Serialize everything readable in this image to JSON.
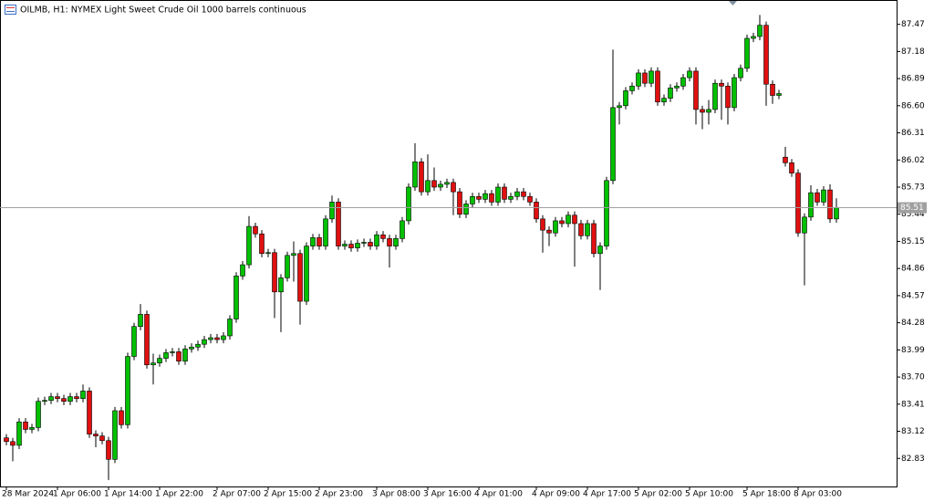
{
  "chart_data": {
    "type": "candlestick",
    "title": "OILMB, H1:  NYMEX Light Sweet Crude Oil 1000 barrels continuous",
    "up_color": "#00c000",
    "down_color": "#e01010",
    "ylim": [
      82.53,
      87.73
    ],
    "yticks": [
      87.47,
      87.18,
      86.89,
      {
        "value": 86.6,
        "label": "86.60"
      },
      86.31,
      86.02,
      85.73,
      85.44,
      85.15,
      84.86,
      84.57,
      84.28,
      83.99,
      {
        "value": 83.7,
        "label": "83.70"
      },
      83.41,
      83.12,
      82.83
    ],
    "current_price": 85.51,
    "categories": [
      "28 Mar 2024",
      null,
      null,
      null,
      null,
      null,
      null,
      null,
      "1 Apr 06:00",
      null,
      null,
      null,
      null,
      null,
      null,
      null,
      "1 Apr 14:00",
      null,
      null,
      null,
      null,
      null,
      null,
      null,
      "1 Apr 22:00",
      null,
      null,
      null,
      null,
      null,
      null,
      null,
      null,
      "2 Apr 07:00",
      null,
      null,
      null,
      null,
      null,
      null,
      null,
      "2 Apr 15:00",
      null,
      null,
      null,
      null,
      null,
      null,
      null,
      "2 Apr 23:00",
      null,
      null,
      null,
      null,
      null,
      null,
      null,
      null,
      "3 Apr 08:00",
      null,
      null,
      null,
      null,
      null,
      null,
      null,
      "3 Apr 16:00",
      null,
      null,
      null,
      null,
      null,
      null,
      null,
      "4 Apr 01:00",
      null,
      null,
      null,
      null,
      null,
      null,
      null,
      null,
      "4 Apr 09:00",
      null,
      null,
      null,
      null,
      null,
      null,
      null,
      "4 Apr 17:00",
      null,
      null,
      null,
      null,
      null,
      null,
      null,
      "5 Apr 02:00",
      null,
      null,
      null,
      null,
      null,
      null,
      null,
      "5 Apr 10:00",
      null,
      null,
      null,
      null,
      null,
      null,
      null,
      null,
      "5 Apr 18:00",
      null,
      null,
      null,
      null,
      null,
      null,
      null,
      "8 Apr 03:00",
      null,
      null,
      null,
      null,
      null,
      null
    ],
    "open": [
      83.05,
      83.01,
      82.97,
      83.22,
      83.14,
      83.16,
      83.44,
      83.45,
      83.49,
      83.47,
      83.44,
      83.49,
      83.47,
      83.55,
      83.09,
      83.07,
      83.02,
      82.82,
      83.34,
      83.19,
      83.92,
      84.24,
      84.37,
      83.83,
      83.85,
      83.9,
      83.96,
      83.97,
      83.87,
      84.0,
      84.02,
      84.05,
      84.1,
      84.12,
      84.1,
      84.14,
      84.32,
      84.78,
      84.9,
      85.31,
      85.23,
      85.02,
      85.03,
      84.61,
      84.76,
      85.0,
      85.02,
      84.51,
      85.1,
      85.19,
      85.1,
      85.39,
      85.57,
      85.1,
      85.12,
      85.08,
      85.13,
      85.14,
      85.1,
      85.22,
      85.18,
      85.1,
      85.18,
      85.37,
      85.73,
      86.0,
      85.68,
      85.8,
      85.73,
      85.76,
      85.78,
      85.68,
      85.44,
      85.55,
      85.63,
      85.6,
      85.66,
      85.57,
      85.73,
      85.6,
      85.63,
      85.68,
      85.63,
      85.57,
      85.39,
      85.27,
      85.24,
      85.37,
      85.34,
      85.43,
      85.34,
      85.21,
      85.34,
      85.02,
      85.1,
      85.8,
      86.58,
      86.6,
      86.76,
      86.81,
      86.95,
      86.84,
      86.97,
      86.64,
      86.68,
      86.79,
      86.81,
      86.9,
      86.97,
      86.56,
      86.53,
      86.56,
      86.84,
      86.81,
      86.58,
      86.9,
      87.0,
      87.32,
      87.34,
      87.46,
      86.83,
      86.71,
      86.05,
      85.99,
      85.88,
      85.24,
      85.41,
      85.67,
      85.57,
      85.7,
      85.39
    ],
    "high": [
      83.09,
      83.05,
      83.26,
      83.26,
      83.2,
      83.48,
      83.49,
      83.53,
      83.53,
      83.51,
      83.53,
      83.53,
      83.62,
      83.59,
      83.13,
      83.11,
      83.06,
      83.38,
      83.38,
      83.96,
      84.28,
      84.48,
      84.41,
      83.95,
      83.94,
      84.0,
      84.01,
      84.01,
      84.04,
      84.06,
      84.09,
      84.14,
      84.16,
      84.16,
      84.18,
      84.36,
      84.82,
      84.94,
      85.42,
      85.35,
      85.27,
      85.07,
      85.07,
      84.8,
      85.04,
      85.15,
      85.06,
      85.14,
      85.23,
      85.23,
      85.43,
      85.64,
      85.61,
      85.16,
      85.16,
      85.17,
      85.18,
      85.18,
      85.26,
      85.26,
      85.22,
      85.22,
      85.41,
      85.77,
      86.2,
      86.04,
      86.08,
      85.94,
      85.8,
      85.82,
      85.82,
      85.72,
      85.59,
      85.67,
      85.67,
      85.7,
      85.7,
      85.77,
      85.77,
      85.67,
      85.72,
      85.72,
      85.67,
      85.61,
      85.43,
      85.31,
      85.41,
      85.41,
      85.47,
      85.47,
      85.38,
      85.38,
      85.38,
      85.14,
      85.84,
      87.2,
      86.64,
      86.8,
      86.85,
      86.99,
      86.99,
      87.01,
      87.01,
      86.72,
      86.83,
      86.85,
      86.94,
      87.01,
      87.01,
      86.6,
      86.66,
      86.88,
      86.88,
      86.85,
      86.94,
      87.04,
      87.36,
      87.38,
      87.57,
      87.5,
      86.87,
      86.77,
      86.16,
      86.03,
      85.92,
      85.45,
      85.75,
      85.71,
      85.74,
      85.76,
      85.61
    ],
    "low": [
      82.97,
      82.8,
      82.93,
      83.1,
      83.1,
      83.12,
      83.4,
      83.41,
      83.43,
      83.4,
      83.4,
      83.43,
      83.43,
      83.05,
      82.95,
      82.98,
      82.6,
      82.78,
      83.15,
      83.15,
      83.88,
      84.2,
      83.79,
      83.62,
      83.81,
      83.86,
      83.92,
      83.83,
      83.83,
      83.96,
      83.98,
      84.01,
      84.06,
      84.06,
      84.06,
      84.1,
      84.28,
      84.74,
      84.86,
      85.19,
      84.98,
      84.98,
      84.33,
      84.18,
      84.72,
      84.72,
      84.26,
      84.47,
      85.06,
      85.06,
      85.06,
      85.35,
      85.06,
      85.06,
      85.04,
      85.04,
      85.09,
      85.06,
      85.06,
      85.14,
      84.87,
      85.06,
      85.14,
      85.33,
      85.69,
      85.64,
      85.64,
      85.69,
      85.69,
      85.72,
      85.43,
      85.4,
      85.4,
      85.51,
      85.56,
      85.56,
      85.53,
      85.53,
      85.56,
      85.56,
      85.59,
      85.59,
      85.53,
      85.35,
      85.03,
      85.1,
      85.2,
      85.3,
      85.3,
      84.88,
      85.17,
      85.17,
      84.98,
      84.63,
      85.06,
      85.76,
      86.4,
      86.56,
      86.72,
      86.77,
      86.8,
      86.8,
      86.6,
      86.6,
      86.64,
      86.75,
      86.77,
      86.86,
      86.4,
      86.35,
      86.4,
      86.52,
      86.45,
      86.4,
      86.54,
      86.86,
      86.96,
      87.28,
      87.3,
      86.6,
      86.62,
      86.67,
      85.95,
      85.84,
      85.2,
      84.68,
      85.37,
      85.53,
      85.53,
      85.35,
      85.35
    ],
    "close": [
      83.01,
      82.97,
      83.22,
      83.14,
      83.16,
      83.44,
      83.45,
      83.49,
      83.47,
      83.44,
      83.49,
      83.47,
      83.55,
      83.09,
      83.07,
      83.02,
      82.82,
      83.34,
      83.19,
      83.92,
      84.24,
      84.37,
      83.83,
      83.85,
      83.9,
      83.96,
      83.97,
      83.87,
      84.0,
      84.02,
      84.05,
      84.1,
      84.12,
      84.1,
      84.14,
      84.32,
      84.78,
      84.9,
      85.31,
      85.23,
      85.02,
      85.03,
      84.61,
      84.76,
      85.0,
      85.02,
      84.51,
      85.1,
      85.19,
      85.1,
      85.39,
      85.57,
      85.1,
      85.12,
      85.08,
      85.13,
      85.14,
      85.1,
      85.22,
      85.18,
      85.1,
      85.18,
      85.37,
      85.73,
      86.0,
      85.68,
      85.8,
      85.73,
      85.76,
      85.78,
      85.68,
      85.44,
      85.55,
      85.63,
      85.6,
      85.66,
      85.57,
      85.73,
      85.6,
      85.63,
      85.68,
      85.63,
      85.57,
      85.39,
      85.27,
      85.24,
      85.37,
      85.34,
      85.43,
      85.34,
      85.21,
      85.34,
      85.02,
      85.1,
      85.8,
      86.58,
      86.6,
      86.76,
      86.81,
      86.95,
      86.84,
      86.97,
      86.64,
      86.68,
      86.79,
      86.81,
      86.9,
      86.97,
      86.56,
      86.53,
      86.56,
      86.84,
      86.81,
      86.58,
      86.9,
      87.0,
      87.32,
      87.34,
      87.46,
      86.83,
      86.71,
      86.73,
      85.99,
      85.88,
      85.24,
      85.41,
      85.67,
      85.57,
      85.7,
      85.39,
      85.51
    ]
  }
}
